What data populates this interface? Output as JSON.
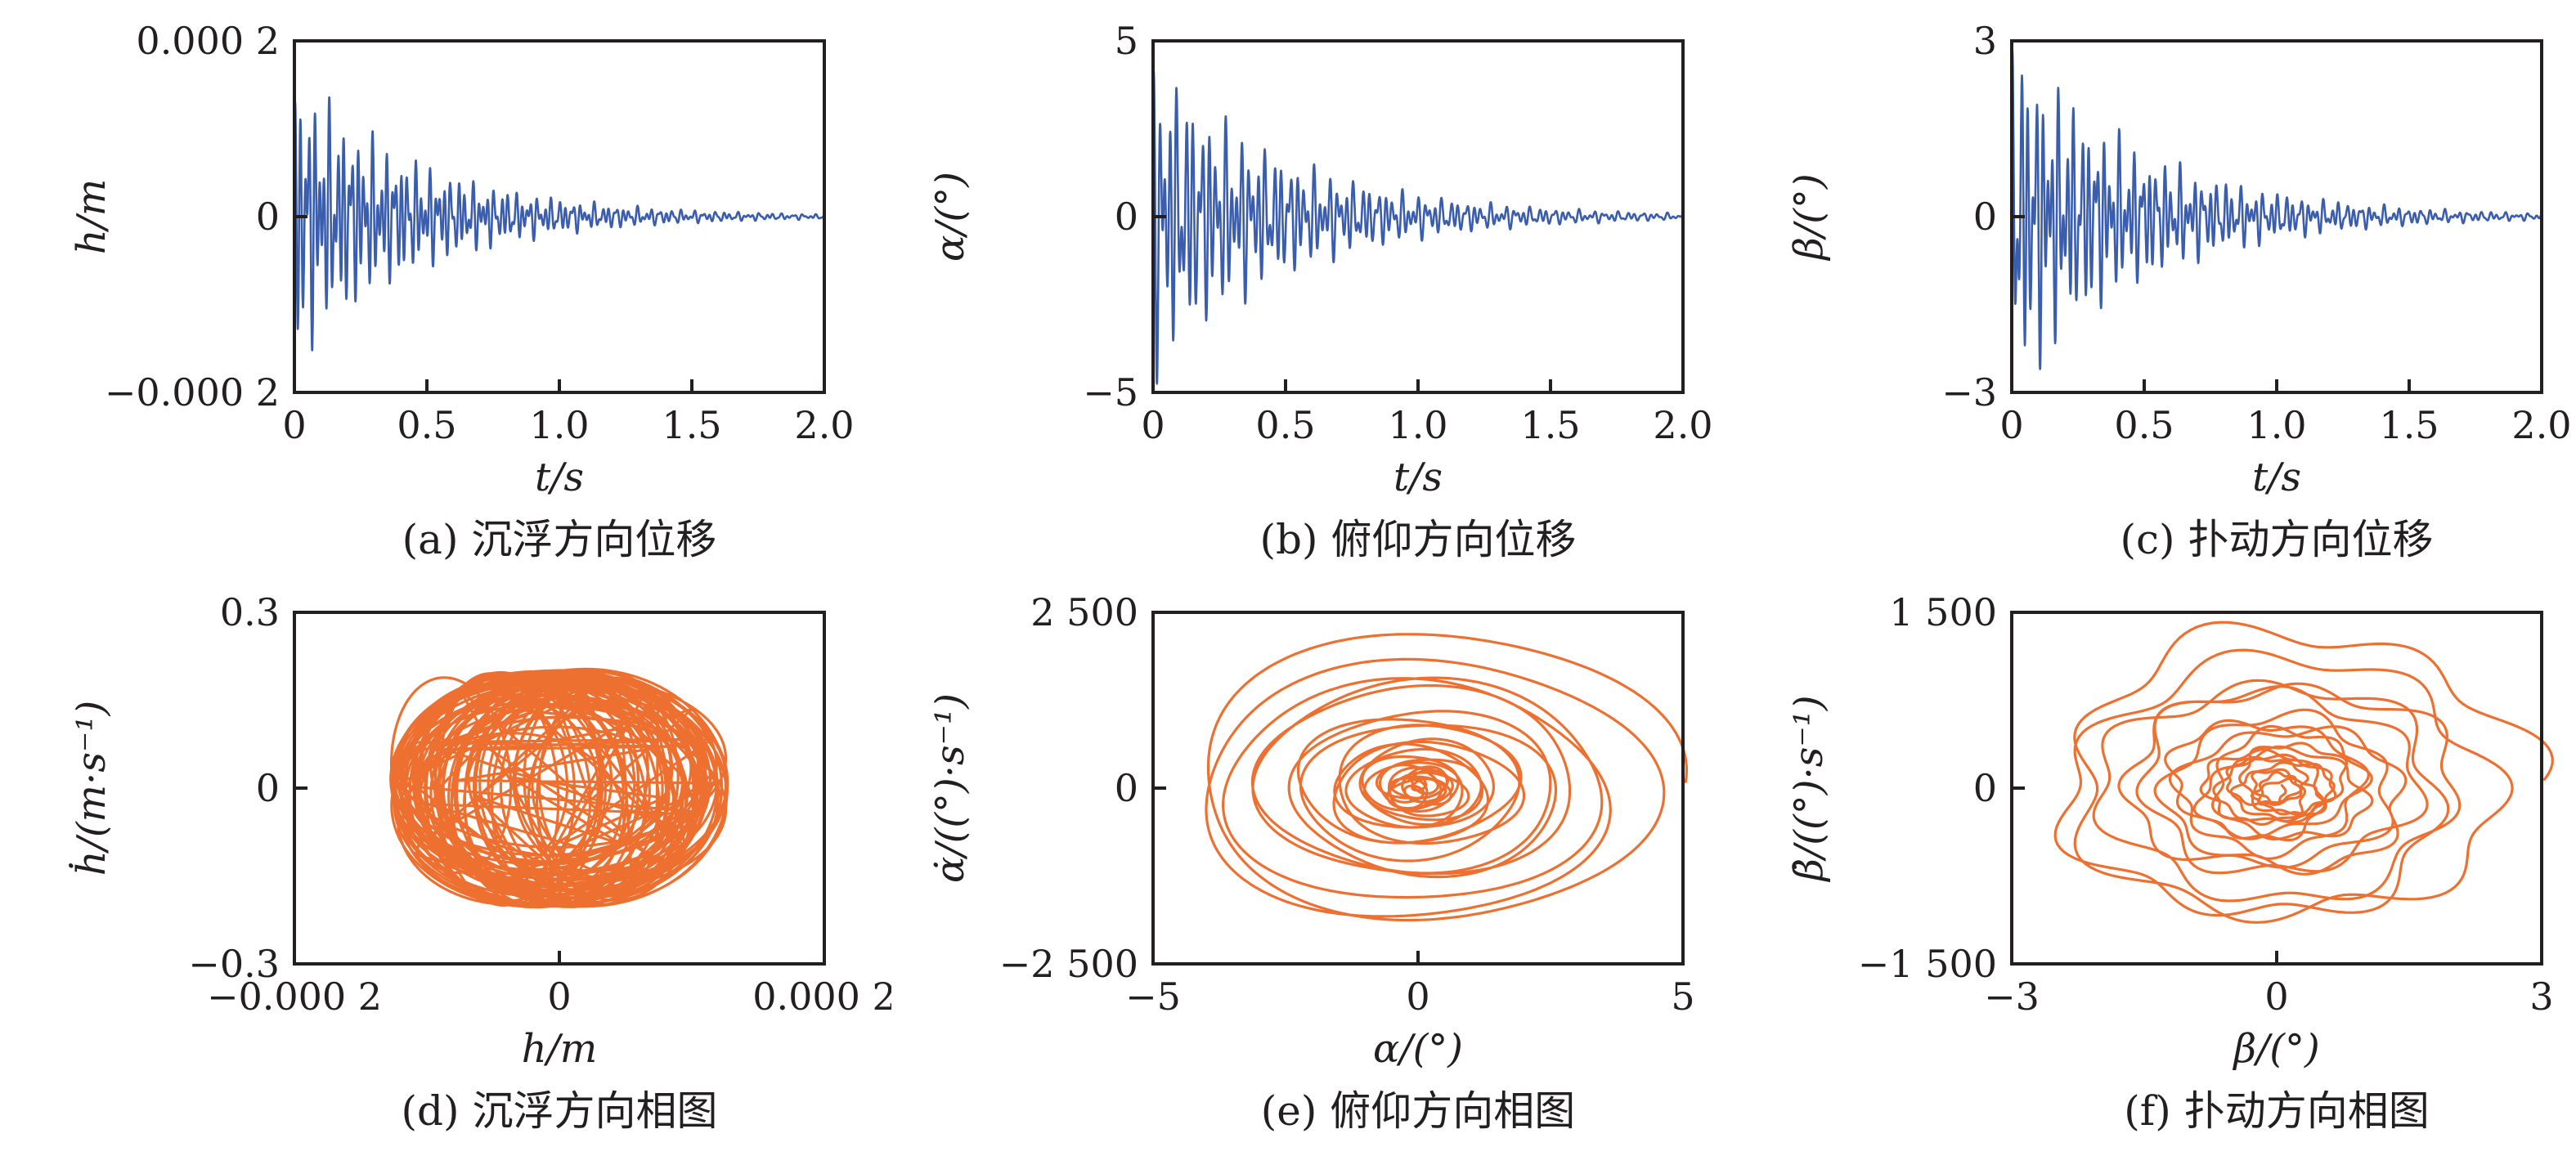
{
  "figure": {
    "colors": {
      "blue": "#3A5DAE",
      "orange": "#ED7031",
      "axis": "#231F20"
    },
    "rows": 2,
    "cols": 3
  },
  "chart_data": [
    {
      "panel": "a",
      "type": "line",
      "kind": "time_series",
      "series_color": "blue",
      "xlabel": "t/s",
      "ylabel": "h/m",
      "caption": "(a) 沉浮方向位移",
      "xlim": [
        0,
        2.0
      ],
      "ylim": [
        -0.0002,
        0.0002
      ],
      "xticks": {
        "values": [
          0,
          0.5,
          1.0,
          1.5,
          2.0
        ],
        "labels": [
          "0",
          "0.5",
          "1.0",
          "1.5",
          "2.0"
        ]
      },
      "yticks": {
        "values": [
          0.0002,
          0,
          -0.0002
        ],
        "labels": [
          "0.000 2",
          "0",
          "−0.000 2"
        ]
      },
      "description": "Damped high-frequency heave displacement; peak ≈ ±0.000 15 m near t=0, decays to ~0 by t ≈ 1.4 s",
      "synth": {
        "peak": 0.76,
        "freqs": [
          55,
          37,
          24
        ],
        "decays": [
          2.3,
          2.1,
          1.6
        ],
        "weights": [
          0.85,
          0.7,
          0.32
        ],
        "phases": [
          0.2,
          2.1,
          0.7
        ]
      }
    },
    {
      "panel": "b",
      "type": "line",
      "kind": "time_series",
      "series_color": "blue",
      "xlabel": "t/s",
      "ylabel": "α/(°)",
      "caption": "(b) 俯仰方向位移",
      "xlim": [
        0,
        2.0
      ],
      "ylim": [
        -5,
        5
      ],
      "xticks": {
        "values": [
          0,
          0.5,
          1.0,
          1.5,
          2.0
        ],
        "labels": [
          "0",
          "0.5",
          "1.0",
          "1.5",
          "2.0"
        ]
      },
      "yticks": {
        "values": [
          5,
          0,
          -5
        ],
        "labels": [
          "5",
          "0",
          "−5"
        ]
      },
      "description": "Damped pitch oscillation; peak ≈ ±4.8° near t=0, decays to ~0 by t ≈ 1.6 s",
      "synth": {
        "peak": 0.95,
        "freqs": [
          48,
          33,
          21
        ],
        "decays": [
          2.1,
          2.0,
          1.5
        ],
        "weights": [
          0.85,
          0.7,
          0.3
        ],
        "phases": [
          0.5,
          1.4,
          2.6
        ]
      }
    },
    {
      "panel": "c",
      "type": "line",
      "kind": "time_series",
      "series_color": "blue",
      "xlabel": "t/s",
      "ylabel": "β/(°)",
      "caption": "(c) 扑动方向位移",
      "xlim": [
        0,
        2.0
      ],
      "ylim": [
        -3,
        3
      ],
      "xticks": {
        "values": [
          0,
          0.5,
          1.0,
          1.5,
          2.0
        ],
        "labels": [
          "0",
          "0.5",
          "1.0",
          "1.5",
          "2.0"
        ]
      },
      "yticks": {
        "values": [
          3,
          0,
          -3
        ],
        "labels": [
          "3",
          "0",
          "−3"
        ]
      },
      "description": "Damped flap oscillation; peak ≈ ±2.8° near t=0, decays to ~0 by t ≈ 1.5 s",
      "synth": {
        "peak": 0.94,
        "freqs": [
          52,
          35,
          22
        ],
        "decays": [
          2.2,
          2.0,
          1.55
        ],
        "weights": [
          0.8,
          0.72,
          0.3
        ],
        "phases": [
          1.1,
          0.3,
          1.9
        ]
      }
    },
    {
      "panel": "d",
      "type": "line",
      "kind": "phase_loops",
      "series_color": "orange",
      "xlabel": "h/m",
      "ylabel": "ḣ/(m·s⁻¹)",
      "caption": "(d) 沉浮方向相图",
      "xlim": [
        -0.0002,
        0.0002
      ],
      "ylim": [
        -0.3,
        0.3
      ],
      "xticks": {
        "values": [
          -0.0002,
          0,
          0.0002
        ],
        "labels": [
          "−0.000 2",
          "0",
          "0.000 2"
        ]
      },
      "yticks": {
        "values": [
          0.3,
          0,
          -0.3
        ],
        "labels": [
          "0.3",
          "0",
          "−0.3"
        ]
      },
      "description": "Dense tangle of overlapping phase-plane loops filling |h| ≲ 0.000 13 m, |ḣ| ≲ 0.2 m·s⁻¹",
      "synth": {
        "loops": 62,
        "fx": 0.64,
        "fy": 0.68,
        "rx_min": 0.35,
        "ry_min": 0.7,
        "seed": 3
      }
    },
    {
      "panel": "e",
      "type": "line",
      "kind": "phase_spiral",
      "series_color": "orange",
      "xlabel": "α/(°)",
      "ylabel": "α̇/((°)·s⁻¹)",
      "caption": "(e) 俯仰方向相图",
      "xlim": [
        -5,
        5
      ],
      "ylim": [
        -2500,
        2500
      ],
      "xticks": {
        "values": [
          -5,
          0,
          5
        ],
        "labels": [
          "−5",
          "0",
          "5"
        ]
      },
      "yticks": {
        "values": [
          2500,
          0,
          -2500
        ],
        "labels": [
          "2 500",
          "0",
          "−2 500"
        ]
      },
      "description": "Inward-spiralling elliptic orbits from |α| ≈ 4.7°, |α̇| ≈ 2100 (°)·s⁻¹ converging to a dense centre",
      "synth": {
        "turns": 26,
        "k": 0.115,
        "fx": 0.95,
        "fy": 0.85,
        "cjit": 0.05,
        "wobbles": [
          {
            "amp": 0.04,
            "lobes": 3,
            "phase": 1.0,
            "drift": 0.8
          },
          {
            "amp": 0.03,
            "lobes": 1,
            "phase": 0.3,
            "drift": 1.5
          }
        ]
      }
    },
    {
      "panel": "f",
      "type": "line",
      "kind": "phase_spiral",
      "series_color": "orange",
      "xlabel": "β/(°)",
      "ylabel": "β̇/((°)·s⁻¹)",
      "caption": "(f) 扑动方向相图",
      "xlim": [
        -3,
        3
      ],
      "ylim": [
        -1500,
        1500
      ],
      "xticks": {
        "values": [
          -3,
          0,
          3
        ],
        "labels": [
          "−3",
          "0",
          "3"
        ]
      },
      "yticks": {
        "values": [
          1500,
          0,
          -1500
        ],
        "labels": [
          "1 500",
          "0",
          "−1 500"
        ]
      },
      "description": "Wavy inward-spiralling loops from |β| ≈ 2.7°, |β̇| ≈ 1250 (°)·s⁻¹ converging to a dense centre",
      "synth": {
        "turns": 18,
        "k": 0.13,
        "fx": 0.9,
        "fy": 0.85,
        "cjit": 0.07,
        "wobbles": [
          {
            "amp": 0.085,
            "lobes": 7,
            "phase": 0.5,
            "drift": 0.9
          },
          {
            "amp": 0.05,
            "lobes": 3,
            "phase": 1.5,
            "drift": 1.6
          }
        ]
      }
    }
  ]
}
